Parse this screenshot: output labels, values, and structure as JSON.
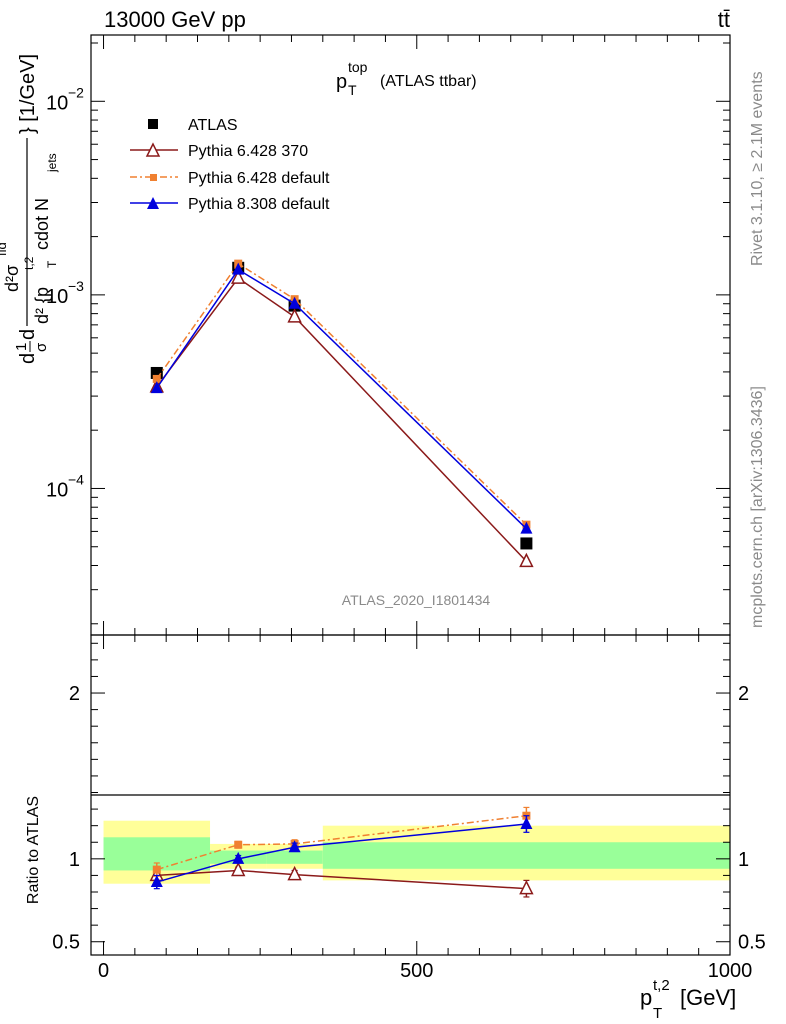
{
  "header": {
    "left": "13000 GeV pp",
    "right": "tt̄"
  },
  "side_text": {
    "rivet": "Rivet 3.1.10, ≥ 2.1M events",
    "mcplots": "mcplots.cern.ch [arXiv:1306.3436]"
  },
  "chart_data": [
    {
      "type": "line",
      "title": "p_T^top (ATLAS ttbar)",
      "title_parts": {
        "main": "p",
        "sub": "T",
        "sup": "top",
        "rest": "(ATLAS ttbar)"
      },
      "ylabel": "d(1/σ)dσ²/d²{p_T^t,2 cdot N_jets} [1/GeV]",
      "ylabel_parts": {
        "a": "d",
        "b_num": "1",
        "b_den": "σ",
        "c": "d",
        "frac_num": "d²σ",
        "frac_num_sup": "fid",
        "frac_den": "d² {p",
        "frac_den_sup": "t,2",
        "frac_den_sub": "T",
        "frac_den_rest": " cdot N",
        "frac_den_sub2": "jets",
        "tail": "} [1/GeV]"
      },
      "yscale": "log",
      "xlim": [
        -20,
        1000
      ],
      "ylim": [
        1.75e-05,
        0.022
      ],
      "ytick_labels": [
        {
          "value": 0.01,
          "base": "10",
          "exp": "−2"
        },
        {
          "value": 0.001,
          "base": "10",
          "exp": "−3"
        },
        {
          "value": 0.0001,
          "base": "10",
          "exp": "−4"
        }
      ],
      "annotation": "ATLAS_2020_I1801434",
      "legend_position": "top-left",
      "x": [
        85,
        215,
        305,
        675
      ],
      "series": [
        {
          "name": "ATLAS",
          "values": [
            0.000395,
            0.00138,
            0.00088,
            5.2e-05
          ],
          "color": "#000000",
          "marker": "square"
        },
        {
          "name": "Pythia 6.428 370",
          "values": [
            0.000335,
            0.00122,
            0.00077,
            4.2e-05
          ],
          "color": "#8b1a1a",
          "marker": "triangle-open",
          "line": "solid"
        },
        {
          "name": "Pythia 6.428 default",
          "values": [
            0.000368,
            0.00145,
            0.00095,
            6.5e-05
          ],
          "color": "#f08030",
          "marker": "square-small",
          "line": "dashdot"
        },
        {
          "name": "Pythia 8.308 default",
          "values": [
            0.00033,
            0.00135,
            0.0009,
            6.2e-05
          ],
          "color": "#0000dd",
          "marker": "triangle",
          "line": "solid"
        }
      ]
    },
    {
      "type": "line",
      "ylabel": "Ratio to ATLAS",
      "xlabel": "p_T^t,2 [GeV]",
      "xlabel_parts": {
        "main": "p",
        "sub": "T",
        "sup": "t,2",
        "rest": "[GeV]"
      },
      "xlim": [
        -20,
        1000
      ],
      "ylim": [
        0.42,
        2.35
      ],
      "yticks": [
        0.5,
        1,
        2
      ],
      "ytick_labels": [
        "0.5",
        "1",
        "2"
      ],
      "xticks": [
        0,
        500,
        1000
      ],
      "xtick_labels": [
        "0",
        "500",
        "1000"
      ],
      "bands": [
        {
          "x0": 0,
          "x1": 170,
          "inner": [
            0.93,
            1.13
          ],
          "outer": [
            0.85,
            1.23
          ]
        },
        {
          "x0": 170,
          "x1": 260,
          "inner": [
            0.97,
            1.05
          ],
          "outer": [
            0.94,
            1.09
          ]
        },
        {
          "x0": 260,
          "x1": 350,
          "inner": [
            0.97,
            1.05
          ],
          "outer": [
            0.94,
            1.09
          ]
        },
        {
          "x0": 350,
          "x1": 1000,
          "inner": [
            0.94,
            1.1
          ],
          "outer": [
            0.87,
            1.2
          ]
        }
      ],
      "x": [
        85,
        215,
        305,
        675
      ],
      "series": [
        {
          "name": "Pythia 6.428 370",
          "values": [
            0.9,
            0.93,
            0.905,
            0.82
          ],
          "err": [
            0.04,
            0.02,
            0.025,
            0.05
          ],
          "color": "#8b1a1a"
        },
        {
          "name": "Pythia 6.428 default",
          "values": [
            0.935,
            1.085,
            1.09,
            1.26
          ],
          "err": [
            0.04,
            0.02,
            0.025,
            0.05
          ],
          "color": "#f08030"
        },
        {
          "name": "Pythia 8.308 default",
          "values": [
            0.86,
            1.0,
            1.07,
            1.21
          ],
          "err": [
            0.04,
            0.02,
            0.025,
            0.05
          ],
          "color": "#0000dd"
        }
      ]
    }
  ]
}
